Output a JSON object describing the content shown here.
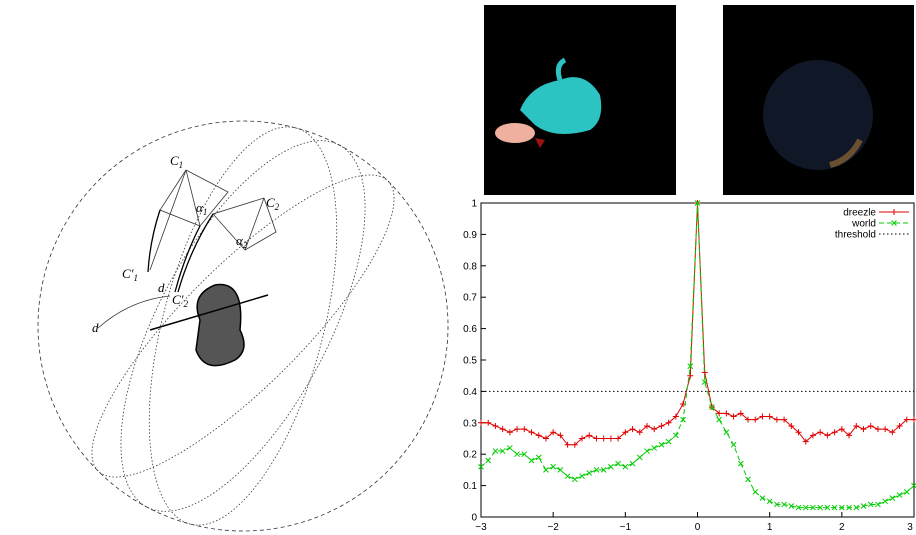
{
  "diagram": {
    "labels": [
      {
        "main": "C",
        "sub": "1"
      },
      {
        "main": "α",
        "sub": "1"
      },
      {
        "main": "C",
        "sub": "2"
      },
      {
        "main": "α",
        "sub": "2"
      },
      {
        "main": "C′",
        "sub": "1"
      },
      {
        "main": "C′",
        "sub": "2"
      },
      {
        "main": "d"
      },
      {
        "main": "d"
      }
    ]
  },
  "chart_data": {
    "type": "line",
    "x": [
      -3,
      -2.9,
      -2.8,
      -2.7,
      -2.6,
      -2.5,
      -2.4,
      -2.3,
      -2.2,
      -2.1,
      -2,
      -1.9,
      -1.8,
      -1.7,
      -1.6,
      -1.5,
      -1.4,
      -1.3,
      -1.2,
      -1.1,
      -1,
      -0.9,
      -0.8,
      -0.7,
      -0.6,
      -0.5,
      -0.4,
      -0.3,
      -0.2,
      -0.1,
      0,
      0.1,
      0.2,
      0.3,
      0.4,
      0.5,
      0.6,
      0.7,
      0.8,
      0.9,
      1,
      1.1,
      1.2,
      1.3,
      1.4,
      1.5,
      1.6,
      1.7,
      1.8,
      1.9,
      2,
      2.1,
      2.2,
      2.3,
      2.4,
      2.5,
      2.6,
      2.7,
      2.8,
      2.9,
      3
    ],
    "series": [
      {
        "name": "dreezle",
        "color": "#e00000",
        "marker": "+",
        "dash": "solid",
        "values": [
          0.3,
          0.3,
          0.29,
          0.28,
          0.27,
          0.28,
          0.28,
          0.27,
          0.26,
          0.25,
          0.27,
          0.26,
          0.23,
          0.23,
          0.25,
          0.26,
          0.25,
          0.25,
          0.25,
          0.25,
          0.27,
          0.28,
          0.27,
          0.29,
          0.28,
          0.29,
          0.3,
          0.32,
          0.36,
          0.45,
          1.0,
          0.46,
          0.35,
          0.33,
          0.33,
          0.32,
          0.33,
          0.31,
          0.31,
          0.32,
          0.32,
          0.31,
          0.31,
          0.29,
          0.27,
          0.24,
          0.26,
          0.27,
          0.26,
          0.27,
          0.28,
          0.26,
          0.29,
          0.28,
          0.29,
          0.28,
          0.28,
          0.27,
          0.29,
          0.31,
          0.31
        ]
      },
      {
        "name": "world",
        "color": "#00cc00",
        "marker": "x",
        "dash": "dashed",
        "values": [
          0.16,
          0.18,
          0.21,
          0.21,
          0.22,
          0.2,
          0.2,
          0.18,
          0.19,
          0.15,
          0.16,
          0.15,
          0.13,
          0.12,
          0.13,
          0.14,
          0.15,
          0.15,
          0.16,
          0.17,
          0.16,
          0.17,
          0.19,
          0.21,
          0.22,
          0.23,
          0.24,
          0.26,
          0.31,
          0.48,
          1.0,
          0.43,
          0.35,
          0.31,
          0.27,
          0.23,
          0.17,
          0.12,
          0.08,
          0.06,
          0.05,
          0.04,
          0.04,
          0.035,
          0.03,
          0.03,
          0.03,
          0.03,
          0.03,
          0.03,
          0.03,
          0.03,
          0.03,
          0.035,
          0.04,
          0.04,
          0.05,
          0.06,
          0.07,
          0.08,
          0.1
        ]
      },
      {
        "name": "threshold",
        "color": "#000000",
        "marker": "none",
        "dash": "dotted",
        "x": [
          -3,
          3
        ],
        "values": [
          0.4,
          0.4
        ]
      }
    ],
    "xlim": [
      -3,
      3
    ],
    "ylim": [
      0,
      1
    ],
    "xticks": [
      {
        "value": -3,
        "label": "−3"
      },
      {
        "value": -2,
        "label": "−2"
      },
      {
        "value": -1,
        "label": "−1"
      },
      0,
      1,
      2,
      3
    ],
    "yticks": [
      0,
      0.1,
      0.2,
      0.3,
      0.4,
      0.5,
      0.6,
      0.7,
      0.8,
      0.9,
      1
    ],
    "legend": "top-right",
    "grid": false
  }
}
